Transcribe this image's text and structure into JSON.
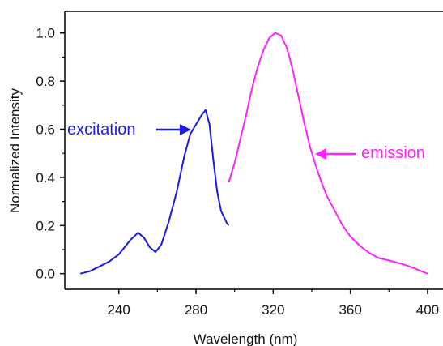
{
  "chart_data": {
    "type": "line",
    "xlabel": "Wavelength (nm)",
    "ylabel": "Normalized Intensity",
    "xlim": [
      212,
      408
    ],
    "ylim": [
      -0.065,
      1.09
    ],
    "x_ticks": [
      "240",
      "280",
      "320",
      "360",
      "400"
    ],
    "y_ticks": [
      "0.0",
      "0.2",
      "0.4",
      "0.6",
      "0.8",
      "1.0"
    ],
    "grid": false,
    "series": [
      {
        "name": "excitation",
        "color": "#1a1ae6",
        "points": [
          [
            220,
            0.0
          ],
          [
            225,
            0.01
          ],
          [
            230,
            0.03
          ],
          [
            235,
            0.05
          ],
          [
            240,
            0.08
          ],
          [
            243,
            0.11
          ],
          [
            246,
            0.14
          ],
          [
            250,
            0.17
          ],
          [
            253,
            0.15
          ],
          [
            256,
            0.11
          ],
          [
            259,
            0.09
          ],
          [
            262,
            0.12
          ],
          [
            266,
            0.22
          ],
          [
            270,
            0.34
          ],
          [
            274,
            0.49
          ],
          [
            277,
            0.58
          ],
          [
            280,
            0.62
          ],
          [
            283,
            0.66
          ],
          [
            285,
            0.68
          ],
          [
            287,
            0.62
          ],
          [
            289,
            0.47
          ],
          [
            291,
            0.34
          ],
          [
            293,
            0.26
          ],
          [
            296,
            0.21
          ],
          [
            297,
            0.2
          ]
        ]
      },
      {
        "name": "emission",
        "color": "#ff22ff",
        "points": [
          [
            297,
            0.38
          ],
          [
            300,
            0.46
          ],
          [
            303,
            0.56
          ],
          [
            306,
            0.66
          ],
          [
            309,
            0.77
          ],
          [
            312,
            0.86
          ],
          [
            315,
            0.93
          ],
          [
            318,
            0.98
          ],
          [
            321,
            1.0
          ],
          [
            324,
            0.99
          ],
          [
            327,
            0.94
          ],
          [
            330,
            0.85
          ],
          [
            333,
            0.74
          ],
          [
            336,
            0.63
          ],
          [
            339,
            0.53
          ],
          [
            342,
            0.45
          ],
          [
            345,
            0.38
          ],
          [
            348,
            0.32
          ],
          [
            352,
            0.26
          ],
          [
            356,
            0.2
          ],
          [
            360,
            0.155
          ],
          [
            365,
            0.115
          ],
          [
            370,
            0.085
          ],
          [
            375,
            0.064
          ],
          [
            380,
            0.055
          ],
          [
            385,
            0.044
          ],
          [
            390,
            0.032
          ],
          [
            395,
            0.016
          ],
          [
            400,
            0.0
          ]
        ]
      }
    ],
    "annotations": [
      {
        "text": "excitation",
        "color": "#1a1ae6",
        "arrow_to": [
          278,
          0.6
        ]
      },
      {
        "text": "emission",
        "color": "#ff22ff",
        "arrow_to": [
          341,
          0.5
        ]
      }
    ]
  }
}
